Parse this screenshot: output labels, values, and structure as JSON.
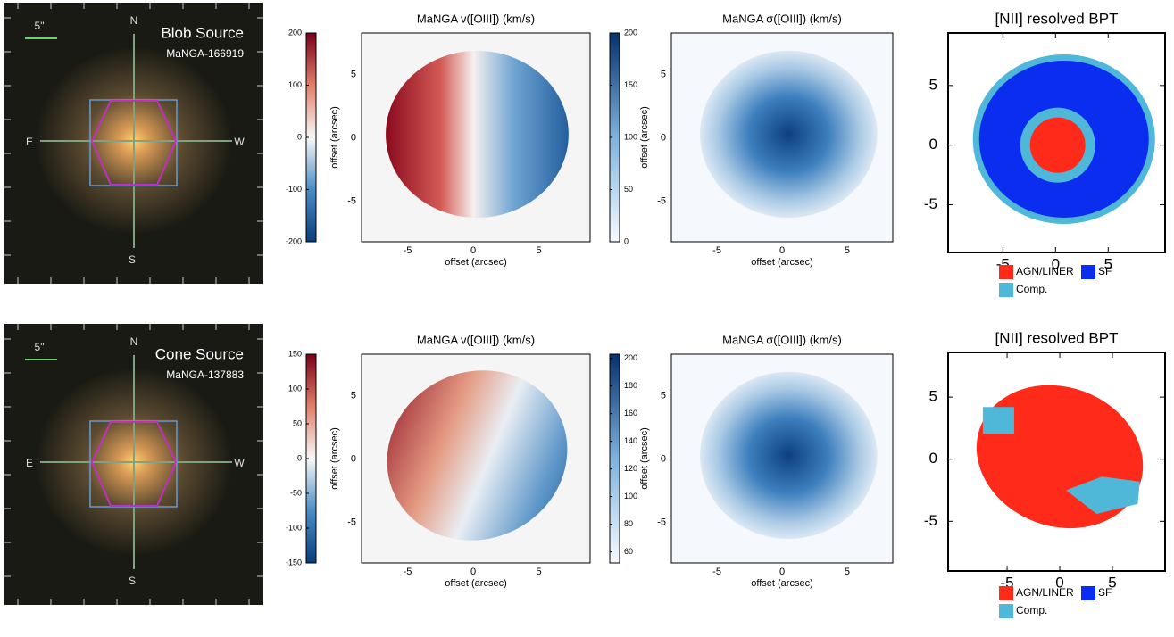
{
  "rows": [
    {
      "image": {
        "scale_bar": "5\"",
        "compass": [
          "N",
          "S",
          "E",
          "W"
        ],
        "title": "Blob Source",
        "subtitle": "MaNGA-166919"
      },
      "velocity": {
        "title": "MaNGA v([OIII]) (km/s)",
        "xlabel": "offset (arcsec)",
        "ylabel": "offset (arcsec)",
        "xlim": [
          -8.5,
          8.9
        ],
        "ylim": [
          -8.2,
          8.3
        ],
        "xticks": [
          -5,
          0,
          5
        ],
        "yticks": [
          -5,
          0,
          5
        ],
        "colorbar": {
          "lim": [
            -200,
            200
          ],
          "ticks": [
            -200,
            -100,
            0,
            100,
            200
          ]
        }
      },
      "dispersion": {
        "title": "MaNGA σ([OIII]) (km/s)",
        "xlabel": "offset (arcsec)",
        "ylabel": "offset (arcsec)",
        "xlim": [
          -8.5,
          8.5
        ],
        "ylim": [
          -8.2,
          8.3
        ],
        "xticks": [
          -5,
          0,
          5
        ],
        "yticks": [
          -5,
          0,
          5
        ],
        "colorbar": {
          "lim": [
            0,
            200
          ],
          "ticks": [
            0,
            50,
            100,
            150,
            200
          ]
        }
      },
      "bpt": {
        "title": "[NII] resolved BPT",
        "xlim": [
          -10.2,
          10.4
        ],
        "ylim": [
          -9,
          9.4
        ],
        "xticks": [
          -5,
          0,
          5
        ],
        "yticks": [
          -5,
          0,
          5
        ],
        "legend": [
          {
            "name": "AGN/LINER",
            "color": "#ff2a1a"
          },
          {
            "name": "SF",
            "color": "#0a2df0"
          },
          {
            "name": "Comp.",
            "color": "#4fb8d8"
          }
        ]
      }
    },
    {
      "image": {
        "scale_bar": "5\"",
        "compass": [
          "N",
          "S",
          "E",
          "W"
        ],
        "title": "Cone Source",
        "subtitle": "MaNGA-137883"
      },
      "velocity": {
        "title": "MaNGA v([OIII]) (km/s)",
        "xlabel": "offset (arcsec)",
        "ylabel": "offset (arcsec)",
        "xlim": [
          -8.5,
          8.9
        ],
        "ylim": [
          -8.2,
          8.3
        ],
        "xticks": [
          -5,
          0,
          5
        ],
        "yticks": [
          -5,
          0,
          5
        ],
        "colorbar": {
          "lim": [
            -150,
            150
          ],
          "ticks": [
            -150,
            -100,
            -50,
            0,
            50,
            100,
            150
          ]
        }
      },
      "dispersion": {
        "title": "MaNGA σ([OIII]) (km/s)",
        "xlabel": "offset (arcsec)",
        "ylabel": "offset (arcsec)",
        "xlim": [
          -8.5,
          8.5
        ],
        "ylim": [
          -8.2,
          8.3
        ],
        "xticks": [
          -5,
          0,
          5
        ],
        "yticks": [
          -5,
          0,
          5
        ],
        "colorbar": {
          "lim": [
            52,
            203
          ],
          "ticks": [
            60,
            80,
            100,
            120,
            140,
            160,
            180,
            200
          ]
        }
      },
      "bpt": {
        "title": "[NII] resolved BPT",
        "xlim": [
          -10.6,
          10
        ],
        "ylim": [
          -9,
          8.6
        ],
        "xticks": [
          -5,
          0,
          5
        ],
        "yticks": [
          -5,
          0,
          5
        ],
        "legend": [
          {
            "name": "AGN/LINER",
            "color": "#ff2a1a"
          },
          {
            "name": "SF",
            "color": "#0a2df0"
          },
          {
            "name": "Comp.",
            "color": "#4fb8d8"
          }
        ]
      }
    }
  ]
}
